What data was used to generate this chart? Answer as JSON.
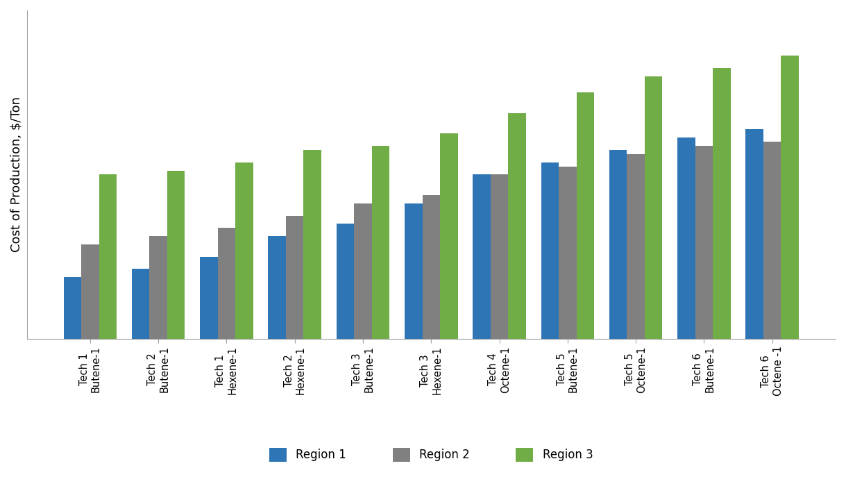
{
  "categories": [
    "Tech 1\nButene-1",
    "Tech 2\nButene-1",
    "Tech 1\nHexene-1",
    "Tech 2\nHexene-1",
    "Tech 3\nButene-1",
    "Tech 3\nHexene-1",
    "Tech 4\nOctene-1",
    "Tech 5\nButene-1",
    "Tech 5\nOctene-1",
    "Tech 6\nButene-1",
    "Tech 6\nOctene -1"
  ],
  "region1": [
    55,
    57,
    60,
    65,
    68,
    73,
    80,
    83,
    86,
    89,
    91
  ],
  "region2": [
    63,
    65,
    67,
    70,
    73,
    75,
    80,
    82,
    85,
    87,
    88
  ],
  "region3": [
    80,
    81,
    83,
    86,
    87,
    90,
    95,
    100,
    104,
    106,
    109
  ],
  "region1_color": "#2E75B6",
  "region2_color": "#808080",
  "region3_color": "#70AD47",
  "legend_labels": [
    "Region 1",
    "Region 2",
    "Region 3"
  ],
  "ylabel": "Cost of Production, $/Ton",
  "ylim_min": 40,
  "ylim_max": 120,
  "bar_width": 0.26,
  "background_color": "#ffffff",
  "plot_bg_color": "#ffffff",
  "spine_color": "#a0a0a0",
  "ylabel_fontsize": 13,
  "legend_fontsize": 12,
  "tick_fontsize": 10.5
}
